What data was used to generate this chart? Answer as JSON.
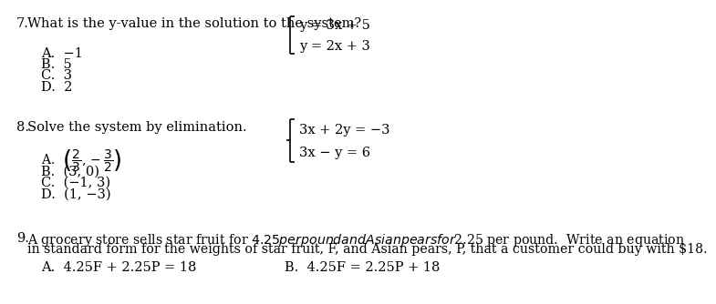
{
  "bg_color": "#ffffff",
  "font_family": "DejaVu Serif",
  "fs": 10.5,
  "q7_num": "7.",
  "q7_question": "What is the y-value in the solution to the system?",
  "q7_eq1": "y = 3x + 5",
  "q7_eq2": "y = 2x + 3",
  "q7_choices": [
    "A.  −1",
    "B.  5",
    "C.  3",
    "D.  2"
  ],
  "q8_num": "8.",
  "q8_question": "Solve the system by elimination.",
  "q8_eq1": "3x + 2y = −3",
  "q8_eq2": "3x − y = 6",
  "q8_choiceB": "B.  (3, 0)",
  "q8_choiceC": "C.  (−1, 3)",
  "q8_choiceD": "D.  (1, −3)",
  "q9_num": "9.",
  "q9_line1": "A grocery store sells star fruit for $4.25 per pound and Asian pears for $2.25 per pound.  Write an equation",
  "q9_line2": "in standard form for the weights of star fruit, F, and Asian pears, P, that a customer could buy with $18.",
  "q9_choiceA": "A.  4.25F + 2.25P = 18",
  "q9_choiceB": "B.  4.25F = 2.25P + 18",
  "bracket_color": "#000000",
  "text_color": "#000000"
}
